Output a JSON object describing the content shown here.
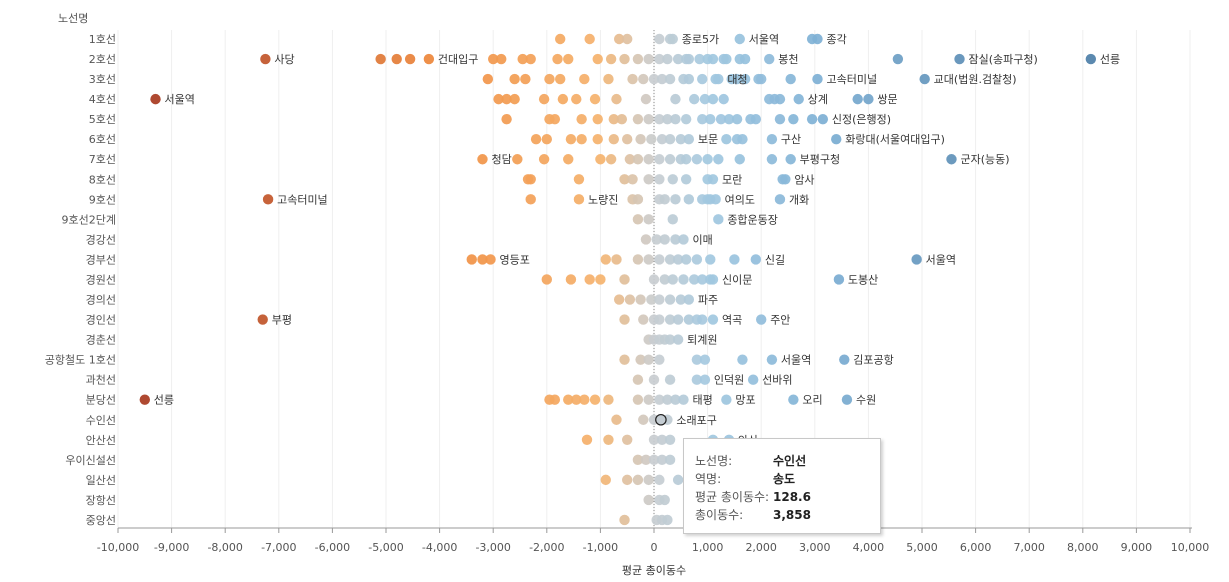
{
  "chart_data": {
    "type": "scatter",
    "row_header": "노선명",
    "xlabel": "평균 총이동수",
    "xlim": [
      -10000,
      10000
    ],
    "x_ticks": [
      "-10,000",
      "-9,000",
      "-8,000",
      "-7,000",
      "-6,000",
      "-5,000",
      "-4,000",
      "-3,000",
      "-2,000",
      "-1,000",
      "0",
      "1,000",
      "2,000",
      "3,000",
      "4,000",
      "5,000",
      "6,000",
      "7,000",
      "8,000",
      "9,000",
      "10,000"
    ],
    "colors": {
      "neg_strong": "#a8391f",
      "neg": "#f08a3c",
      "neg_light": "#f5b36e",
      "neutral": "#c9cdd0",
      "pos_light": "#a3c9e0",
      "pos": "#7fb1d6",
      "pos_strong": "#4d7fa8",
      "zero_line": "#888888"
    },
    "rows": [
      {
        "name": "1호선",
        "values": [
          -1750,
          -1200,
          -650,
          -500,
          100,
          300,
          350,
          1600,
          2950,
          3050
        ],
        "labels": [
          {
            "x": 350,
            "text": "종로5가"
          },
          {
            "x": 1600,
            "text": "서울역"
          },
          {
            "x": 3050,
            "text": "종각"
          }
        ]
      },
      {
        "name": "2호선",
        "values": [
          -7250,
          -5100,
          -4800,
          -4550,
          -4200,
          -3000,
          -2850,
          -2450,
          -2300,
          -1800,
          -1600,
          -1050,
          -800,
          -550,
          -300,
          -100,
          100,
          250,
          450,
          600,
          650,
          850,
          1000,
          1100,
          1300,
          1350,
          1600,
          1700,
          2150,
          4550,
          5700,
          8150
        ],
        "labels": [
          {
            "x": -7250,
            "text": "사당",
            "side": "right"
          },
          {
            "x": -4200,
            "text": "건대입구"
          },
          {
            "x": 2150,
            "text": "봉천"
          },
          {
            "x": 5700,
            "text": "잠실(송파구청)"
          },
          {
            "x": 8150,
            "text": "선릉"
          }
        ]
      },
      {
        "name": "3호선",
        "values": [
          -3100,
          -2600,
          -2400,
          -1950,
          -1750,
          -1300,
          -850,
          -400,
          -200,
          0,
          150,
          300,
          550,
          650,
          900,
          1150,
          1200,
          1450,
          1550,
          1700,
          1950,
          2000,
          2550,
          3050,
          5050
        ],
        "labels": [
          {
            "x": 1200,
            "text": "대청"
          },
          {
            "x": 3050,
            "text": "고속터미널"
          },
          {
            "x": 5050,
            "text": "교대(법원.검찰청)"
          }
        ]
      },
      {
        "name": "4호선",
        "values": [
          -9300,
          -2900,
          -2750,
          -2600,
          -2050,
          -1700,
          -1450,
          -1100,
          -700,
          -150,
          400,
          750,
          950,
          1100,
          1300,
          2150,
          2250,
          2350,
          2700,
          3800,
          4000
        ],
        "labels": [
          {
            "x": -9300,
            "text": "서울역",
            "side": "right"
          },
          {
            "x": 2700,
            "text": "상계"
          },
          {
            "x": 4000,
            "text": "쌍문"
          }
        ]
      },
      {
        "name": "5호선",
        "values": [
          -2750,
          -1950,
          -1850,
          -1350,
          -1050,
          -750,
          -600,
          -300,
          -100,
          100,
          250,
          400,
          600,
          900,
          1050,
          1250,
          1400,
          1550,
          1800,
          1900,
          2350,
          2600,
          2950,
          3150
        ],
        "labels": [
          {
            "x": 3150,
            "text": "신정(은행정)"
          }
        ]
      },
      {
        "name": "6호선",
        "values": [
          -2200,
          -2000,
          -1550,
          -1350,
          -1050,
          -750,
          -500,
          -250,
          -50,
          150,
          300,
          500,
          650,
          1350,
          1550,
          1650,
          2200,
          3400
        ],
        "labels": [
          {
            "x": 650,
            "text": "보문"
          },
          {
            "x": 2200,
            "text": "구산"
          },
          {
            "x": 3400,
            "text": "화랑대(서울여대입구)"
          }
        ]
      },
      {
        "name": "7호선",
        "values": [
          -3200,
          -2550,
          -2050,
          -1600,
          -1000,
          -800,
          -450,
          -300,
          -100,
          100,
          300,
          500,
          600,
          800,
          1000,
          1200,
          1600,
          2200,
          2550,
          5550
        ],
        "labels": [
          {
            "x": -3200,
            "text": "청담"
          },
          {
            "x": 2550,
            "text": "부평구청"
          },
          {
            "x": 5550,
            "text": "군자(능동)"
          }
        ]
      },
      {
        "name": "8호선",
        "values": [
          -2350,
          -2300,
          -1400,
          -550,
          -400,
          -100,
          100,
          350,
          600,
          1000,
          1100,
          2400,
          2450
        ],
        "labels": [
          {
            "x": 1100,
            "text": "모란"
          },
          {
            "x": 2450,
            "text": "암사"
          }
        ]
      },
      {
        "name": "9호선",
        "values": [
          -7200,
          -2300,
          -1400,
          -400,
          -300,
          100,
          200,
          400,
          650,
          900,
          1000,
          1050,
          1150,
          2350
        ],
        "labels": [
          {
            "x": -7200,
            "text": "고속터미널",
            "side": "right"
          },
          {
            "x": -1400,
            "text": "노량진"
          },
          {
            "x": 1150,
            "text": "여의도"
          },
          {
            "x": 2350,
            "text": "개화"
          }
        ]
      },
      {
        "name": "9호선2단계",
        "values": [
          -300,
          -100,
          350,
          1200
        ],
        "labels": [
          {
            "x": 1200,
            "text": "종합운동장"
          }
        ]
      },
      {
        "name": "경강선",
        "values": [
          -150,
          50,
          200,
          400,
          550
        ],
        "labels": [
          {
            "x": 550,
            "text": "이매"
          }
        ]
      },
      {
        "name": "경부선",
        "values": [
          -3400,
          -3200,
          -3050,
          -900,
          -700,
          -300,
          -100,
          100,
          300,
          450,
          600,
          800,
          1050,
          1500,
          1900,
          4900
        ],
        "labels": [
          {
            "x": -3050,
            "text": "영등포"
          },
          {
            "x": 1900,
            "text": "신길"
          },
          {
            "x": 4900,
            "text": "서울역"
          }
        ]
      },
      {
        "name": "경원선",
        "values": [
          -2000,
          -1550,
          -1200,
          -1000,
          -550,
          0,
          200,
          350,
          550,
          750,
          900,
          1050,
          1100,
          3450
        ],
        "labels": [
          {
            "x": 1100,
            "text": "신이문"
          },
          {
            "x": 3450,
            "text": "도봉산"
          }
        ]
      },
      {
        "name": "경의선",
        "values": [
          -650,
          -450,
          -250,
          -50,
          100,
          300,
          500,
          650
        ],
        "labels": [
          {
            "x": 650,
            "text": "파주"
          }
        ]
      },
      {
        "name": "경인선",
        "values": [
          -7300,
          -550,
          -200,
          0,
          100,
          300,
          450,
          650,
          800,
          900,
          1100,
          2000
        ],
        "labels": [
          {
            "x": -7300,
            "text": "부평",
            "side": "right"
          },
          {
            "x": 1100,
            "text": "역곡"
          },
          {
            "x": 2000,
            "text": "주안"
          }
        ]
      },
      {
        "name": "경춘선",
        "values": [
          -100,
          0,
          100,
          200,
          300,
          450
        ],
        "labels": [
          {
            "x": 450,
            "text": "퇴계원"
          }
        ]
      },
      {
        "name": "공항철도 1호선",
        "values": [
          -550,
          -250,
          -100,
          100,
          800,
          950,
          1650,
          2200,
          3550
        ],
        "labels": [
          {
            "x": 2200,
            "text": "서울역"
          },
          {
            "x": 3550,
            "text": "김포공항"
          }
        ]
      },
      {
        "name": "과천선",
        "values": [
          -300,
          0,
          300,
          800,
          950,
          1850
        ],
        "labels": [
          {
            "x": 950,
            "text": "인덕원"
          },
          {
            "x": 1850,
            "text": "선바위"
          }
        ]
      },
      {
        "name": "분당선",
        "values": [
          -9500,
          -1950,
          -1850,
          -1600,
          -1450,
          -1300,
          -1100,
          -850,
          -300,
          -100,
          100,
          250,
          400,
          550,
          1350,
          2600,
          3600
        ],
        "labels": [
          {
            "x": -9500,
            "text": "선릉",
            "side": "right"
          },
          {
            "x": 550,
            "text": "태평"
          },
          {
            "x": 1350,
            "text": "망포"
          },
          {
            "x": 2600,
            "text": "오리"
          },
          {
            "x": 3600,
            "text": "수원"
          }
        ]
      },
      {
        "name": "수인선",
        "values": [
          -700,
          -200,
          0,
          128.6,
          250
        ],
        "labels": [
          {
            "x": 250,
            "text": "소래포구"
          }
        ],
        "highlight": 128.6
      },
      {
        "name": "안산선",
        "values": [
          -1250,
          -850,
          -500,
          0,
          150,
          300,
          1100,
          1400
        ],
        "labels": [
          {
            "x": 1400,
            "text": "안산"
          }
        ]
      },
      {
        "name": "우이신설선",
        "values": [
          -300,
          -150,
          0,
          150,
          300
        ],
        "labels": []
      },
      {
        "name": "일산선",
        "values": [
          -900,
          -500,
          -300,
          -100,
          100,
          450
        ],
        "labels": []
      },
      {
        "name": "장항선",
        "values": [
          -100,
          100,
          200
        ],
        "labels": []
      },
      {
        "name": "중앙선",
        "values": [
          -550,
          50,
          150,
          250
        ],
        "labels": []
      }
    ]
  },
  "tooltip": {
    "rows": [
      {
        "key": "노선명:",
        "value": "수인선"
      },
      {
        "key": "역명:",
        "value": "송도"
      },
      {
        "key": "평균 총이동수:",
        "value": "128.6"
      },
      {
        "key": "총이동수:",
        "value": "3,858"
      }
    ]
  }
}
